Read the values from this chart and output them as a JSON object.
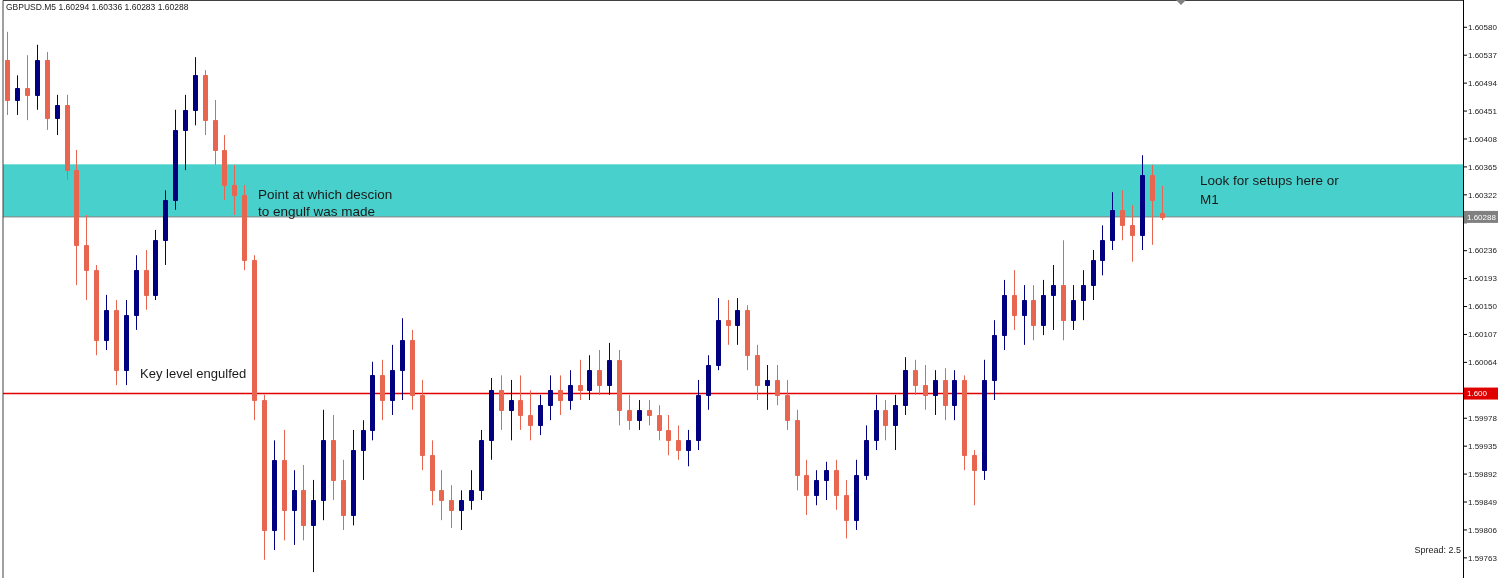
{
  "chart_data": {
    "type": "candlestick",
    "title": "GBPUSD.M5 1.60294 1.60336 1.60283 1.60288",
    "categories": [
      null,
      null,
      null,
      null,
      null,
      null,
      null,
      null,
      null,
      null,
      null,
      null,
      null,
      null,
      null,
      null,
      null,
      null,
      null,
      null,
      null,
      null,
      null,
      null,
      null,
      null,
      null,
      null,
      null,
      null,
      null,
      null,
      null,
      null,
      null,
      null,
      null,
      null,
      null,
      null,
      null,
      null,
      null,
      null,
      null,
      null,
      null,
      null,
      null,
      null,
      null,
      null,
      null,
      null,
      null,
      null,
      null,
      null,
      null,
      null,
      null,
      null,
      null,
      null,
      null,
      null,
      null,
      null,
      null,
      null,
      null,
      null,
      null,
      null,
      null,
      null,
      null,
      null,
      null,
      null,
      null,
      null,
      null,
      null,
      null,
      null,
      null,
      null,
      null,
      null,
      null,
      null,
      null,
      null,
      null,
      null,
      null,
      null,
      null,
      null,
      null,
      null,
      null,
      null,
      null,
      null,
      null,
      null,
      null,
      null,
      null,
      null,
      null,
      null,
      null,
      null,
      null,
      null,
      null,
      null,
      null,
      null,
      null,
      null,
      null,
      null,
      null,
      null,
      null,
      null,
      null,
      null,
      null,
      null,
      null,
      null,
      null,
      null,
      null,
      null,
      null,
      null,
      null,
      null,
      null,
      null,
      null,
      null
    ],
    "ohlc": [
      [
        1.6053,
        1.60573,
        1.60445,
        1.60468
      ],
      [
        1.60468,
        1.60506,
        1.60445,
        1.60486
      ],
      [
        1.60486,
        1.60537,
        1.60437,
        1.60476
      ],
      [
        1.60476,
        1.60553,
        1.60453,
        1.6053
      ],
      [
        1.6053,
        1.60542,
        1.60422,
        1.6044
      ],
      [
        1.6044,
        1.60476,
        1.60414,
        1.6046
      ],
      [
        1.6046,
        1.60476,
        1.60345,
        1.6036
      ],
      [
        1.6036,
        1.60391,
        1.60183,
        1.60245
      ],
      [
        1.60245,
        1.60291,
        1.6016,
        1.60206
      ],
      [
        1.60206,
        1.60214,
        1.60075,
        1.60098
      ],
      [
        1.60098,
        1.60168,
        1.60083,
        1.60145
      ],
      [
        1.60145,
        1.6016,
        1.60029,
        1.60052
      ],
      [
        1.60052,
        1.6016,
        1.60029,
        1.60137
      ],
      [
        1.60137,
        1.60229,
        1.60114,
        1.60206
      ],
      [
        1.60206,
        1.60237,
        1.60145,
        1.60168
      ],
      [
        1.60168,
        1.60268,
        1.6016,
        1.60252
      ],
      [
        1.60252,
        1.60329,
        1.60214,
        1.60314
      ],
      [
        1.60314,
        1.60453,
        1.60299,
        1.60422
      ],
      [
        1.60422,
        1.60476,
        1.6036,
        1.60453
      ],
      [
        1.60453,
        1.60534,
        1.60429,
        1.60506
      ],
      [
        1.60506,
        1.60514,
        1.60414,
        1.60437
      ],
      [
        1.60437,
        1.60468,
        1.60368,
        1.60391
      ],
      [
        1.60391,
        1.60414,
        1.60314,
        1.60337
      ],
      [
        1.60337,
        1.60368,
        1.60291,
        1.60322
      ],
      [
        1.60322,
        1.60337,
        1.60206,
        1.60222
      ],
      [
        1.60222,
        1.60229,
        1.59975,
        1.60006
      ],
      [
        1.60006,
        1.60014,
        1.5976,
        1.59806
      ],
      [
        1.59806,
        1.59944,
        1.59775,
        1.59914
      ],
      [
        1.59914,
        1.5996,
        1.5979,
        1.59837
      ],
      [
        1.59837,
        1.59898,
        1.59783,
        1.59867
      ],
      [
        1.59867,
        1.59906,
        1.5979,
        1.59813
      ],
      [
        1.59813,
        1.59883,
        1.59741,
        1.59852
      ],
      [
        1.59852,
        1.59991,
        1.59821,
        1.59944
      ],
      [
        1.59944,
        1.59983,
        1.59852,
        1.59883
      ],
      [
        1.59883,
        1.59914,
        1.59806,
        1.59829
      ],
      [
        1.59829,
        1.5996,
        1.59813,
        1.59929
      ],
      [
        1.59929,
        1.59975,
        1.59883,
        1.5996
      ],
      [
        1.5996,
        1.60065,
        1.59944,
        1.60044
      ],
      [
        1.60044,
        1.60068,
        1.59975,
        1.60006
      ],
      [
        1.60006,
        1.60091,
        1.59983,
        1.60052
      ],
      [
        1.60052,
        1.60132,
        1.60006,
        1.60098
      ],
      [
        1.60098,
        1.60114,
        1.59991,
        1.60014
      ],
      [
        1.60014,
        1.60037,
        1.59898,
        1.59921
      ],
      [
        1.59921,
        1.59944,
        1.59844,
        1.59867
      ],
      [
        1.59867,
        1.59898,
        1.59821,
        1.59852
      ],
      [
        1.59852,
        1.59875,
        1.59809,
        1.59837
      ],
      [
        1.59837,
        1.59867,
        1.59806,
        1.59852
      ],
      [
        1.59852,
        1.59898,
        1.59837,
        1.59867
      ],
      [
        1.59867,
        1.5996,
        1.59852,
        1.59944
      ],
      [
        1.59944,
        1.6004,
        1.59914,
        1.60021
      ],
      [
        1.60021,
        1.60044,
        1.5996,
        1.59991
      ],
      [
        1.59991,
        1.60037,
        1.59944,
        1.60006
      ],
      [
        1.60006,
        1.60044,
        1.5996,
        1.59983
      ],
      [
        1.59983,
        1.60021,
        1.59944,
        1.59967
      ],
      [
        1.59967,
        1.60014,
        1.59952,
        1.59998
      ],
      [
        1.59998,
        1.60044,
        1.59975,
        1.60021
      ],
      [
        1.60021,
        1.60044,
        1.59983,
        1.60006
      ],
      [
        1.60006,
        1.60052,
        1.59991,
        1.60029
      ],
      [
        1.60029,
        1.60068,
        1.60006,
        1.60021
      ],
      [
        1.60021,
        1.60075,
        1.60006,
        1.60052
      ],
      [
        1.60052,
        1.60083,
        1.60014,
        1.60029
      ],
      [
        1.60029,
        1.60094,
        1.60014,
        1.60068
      ],
      [
        1.60068,
        1.60083,
        1.59967,
        1.59991
      ],
      [
        1.59991,
        1.60014,
        1.5996,
        1.59975
      ],
      [
        1.59975,
        1.60006,
        1.5996,
        1.59991
      ],
      [
        1.59991,
        1.60006,
        1.59967,
        1.59983
      ],
      [
        1.59983,
        1.59998,
        1.59944,
        1.5996
      ],
      [
        1.5996,
        1.59983,
        1.59921,
        1.59944
      ],
      [
        1.59944,
        1.59967,
        1.59914,
        1.59929
      ],
      [
        1.59929,
        1.5996,
        1.59904,
        1.59944
      ],
      [
        1.59944,
        1.60037,
        1.59929,
        1.60014
      ],
      [
        1.60014,
        1.60075,
        1.59991,
        1.6006
      ],
      [
        1.6006,
        1.60163,
        1.60052,
        1.60129
      ],
      [
        1.60129,
        1.6016,
        1.60091,
        1.60121
      ],
      [
        1.60121,
        1.60163,
        1.60091,
        1.60145
      ],
      [
        1.60145,
        1.60152,
        1.60052,
        1.60075
      ],
      [
        1.60075,
        1.60091,
        1.60006,
        1.60029
      ],
      [
        1.60029,
        1.6006,
        1.59991,
        1.60037
      ],
      [
        1.60037,
        1.6006,
        1.59998,
        1.60014
      ],
      [
        1.60014,
        1.60037,
        1.5996,
        1.59975
      ],
      [
        1.59975,
        1.59991,
        1.59867,
        1.5989
      ],
      [
        1.5989,
        1.59914,
        1.59829,
        1.5986
      ],
      [
        1.5986,
        1.59898,
        1.59844,
        1.59883
      ],
      [
        1.59883,
        1.59911,
        1.59852,
        1.59898
      ],
      [
        1.59898,
        1.59914,
        1.59837,
        1.5986
      ],
      [
        1.5986,
        1.59883,
        1.59793,
        1.59821
      ],
      [
        1.59821,
        1.59914,
        1.59806,
        1.5989
      ],
      [
        1.5989,
        1.59967,
        1.59883,
        1.59944
      ],
      [
        1.59944,
        1.60014,
        1.59929,
        1.59991
      ],
      [
        1.59991,
        1.60006,
        1.59944,
        1.59967
      ],
      [
        1.59967,
        1.60014,
        1.59929,
        1.59998
      ],
      [
        1.59998,
        1.60072,
        1.59983,
        1.60052
      ],
      [
        1.60052,
        1.60068,
        1.60014,
        1.60029
      ],
      [
        1.60029,
        1.6006,
        1.59991,
        1.60014
      ],
      [
        1.60014,
        1.60052,
        1.59983,
        1.60037
      ],
      [
        1.60037,
        1.60055,
        1.59975,
        1.59998
      ],
      [
        1.59998,
        1.60052,
        1.59975,
        1.60037
      ],
      [
        1.60037,
        1.60044,
        1.59898,
        1.59921
      ],
      [
        1.59921,
        1.59929,
        1.59844,
        1.59898
      ],
      [
        1.59898,
        1.60068,
        1.59883,
        1.60037
      ],
      [
        1.60037,
        1.60129,
        1.60006,
        1.60106
      ],
      [
        1.60106,
        1.60191,
        1.60083,
        1.60168
      ],
      [
        1.60168,
        1.60206,
        1.60114,
        1.60137
      ],
      [
        1.60137,
        1.60183,
        1.60091,
        1.6016
      ],
      [
        1.6016,
        1.60183,
        1.60098,
        1.60121
      ],
      [
        1.60121,
        1.60191,
        1.60106,
        1.60168
      ],
      [
        1.60168,
        1.60214,
        1.60114,
        1.60183
      ],
      [
        1.60183,
        1.60252,
        1.60098,
        1.60129
      ],
      [
        1.60129,
        1.60183,
        1.60114,
        1.6016
      ],
      [
        1.6016,
        1.60206,
        1.60129,
        1.60183
      ],
      [
        1.60183,
        1.60237,
        1.6016,
        1.60222
      ],
      [
        1.60222,
        1.60275,
        1.60198,
        1.60252
      ],
      [
        1.60252,
        1.60326,
        1.60237,
        1.60299
      ],
      [
        1.60299,
        1.60329,
        1.60252,
        1.60275
      ],
      [
        1.60275,
        1.60306,
        1.60219,
        1.6026
      ],
      [
        1.6026,
        1.60383,
        1.60237,
        1.60352
      ],
      [
        1.60352,
        1.60368,
        1.60245,
        1.60314
      ],
      [
        1.60294,
        1.60336,
        1.60283,
        1.60288
      ],
      null,
      null,
      null,
      null,
      null,
      null,
      null,
      null,
      null,
      null,
      null,
      null,
      null,
      null,
      null,
      null,
      null,
      null,
      null,
      null,
      null,
      null,
      null,
      null,
      null,
      null,
      null,
      null,
      null,
      null
    ],
    "colors": [
      "#e8664f",
      "#000080",
      "#e8664f",
      "#000080",
      "#e8664f",
      "#000080",
      "#e8664f",
      "#e8664f",
      "#e8664f",
      "#e8664f",
      "#000080",
      "#e8664f",
      "#000080",
      "#000080",
      "#e8664f",
      "#000080",
      "#000080",
      "#000080",
      "#000080",
      "#000080",
      "#e8664f",
      "#e8664f",
      "#e8664f",
      "#e8664f",
      "#e8664f",
      "#e8664f",
      "#e8664f",
      "#000080",
      "#e8664f",
      "#000080",
      "#e8664f",
      "#000080",
      "#000080",
      "#e8664f",
      "#e8664f",
      "#000080",
      "#000080",
      "#000080",
      "#e8664f",
      "#000080",
      "#000080",
      "#e8664f",
      "#e8664f",
      "#e8664f",
      "#e8664f",
      "#e8664f",
      "#000080",
      "#000080",
      "#000080",
      "#000080",
      "#e8664f",
      "#000080",
      "#e8664f",
      "#e8664f",
      "#000080",
      "#000080",
      "#e8664f",
      "#000080",
      "#e8664f",
      "#000080",
      "#e8664f",
      "#000080",
      "#e8664f",
      "#e8664f",
      "#000080",
      "#e8664f",
      "#e8664f",
      "#e8664f",
      "#e8664f",
      "#000080",
      "#000080",
      "#000080",
      "#000080",
      "#e8664f",
      "#000080",
      "#e8664f",
      "#e8664f",
      "#000080",
      "#e8664f",
      "#e8664f",
      "#e8664f",
      "#e8664f",
      "#000080",
      "#000080",
      "#e8664f",
      "#e8664f",
      "#000080",
      "#000080",
      "#000080",
      "#e8664f",
      "#000080",
      "#000080",
      "#e8664f",
      "#e8664f",
      "#000080",
      "#e8664f",
      "#000080",
      "#e8664f",
      "#e8664f",
      "#000080",
      "#000080",
      "#000080",
      "#e8664f",
      "#000080",
      "#e8664f",
      "#000080",
      "#000080",
      "#e8664f",
      "#000080",
      "#000080",
      "#000080",
      "#000080",
      "#000080",
      "#e8664f",
      "#e8664f",
      "#000080",
      "#e8664f",
      "#e8664f",
      null,
      null,
      null,
      null,
      null,
      null,
      null,
      null,
      null,
      null,
      null,
      null,
      null,
      null,
      null,
      null,
      null,
      null,
      null,
      null,
      null,
      null,
      null,
      null,
      null,
      null,
      null,
      null,
      null,
      null
    ],
    "ylim": [
      1.59732,
      1.60622
    ],
    "yticks": [
      {
        "value": 1.6058,
        "label": "1.60580"
      },
      {
        "value": 1.60537,
        "label": "1.60537"
      },
      {
        "value": 1.60494,
        "label": "1.60494"
      },
      {
        "value": 1.60451,
        "label": "1.60451"
      },
      {
        "value": 1.60408,
        "label": "1.60408"
      },
      {
        "value": 1.60365,
        "label": "1.60365"
      },
      {
        "value": 1.60322,
        "label": "1.60322"
      },
      {
        "value": 1.60279,
        "label": null
      },
      {
        "value": 1.60236,
        "label": "1.60236"
      },
      {
        "value": 1.60193,
        "label": "1.60193"
      },
      {
        "value": 1.6015,
        "label": "1.60150"
      },
      {
        "value": 1.60107,
        "label": "1.60107"
      },
      {
        "value": 1.60064,
        "label": "1.60064"
      },
      {
        "value": 1.60021,
        "label": null
      },
      {
        "value": 1.59978,
        "label": "1.59978"
      },
      {
        "value": 1.59935,
        "label": "1.59935"
      },
      {
        "value": 1.59892,
        "label": "1.59892"
      },
      {
        "value": 1.59849,
        "label": "1.59849"
      },
      {
        "value": 1.59806,
        "label": "1.59806"
      },
      {
        "value": 1.59763,
        "label": "1.59763"
      }
    ],
    "tick_labels": "y",
    "bands": [
      {
        "axis": "y",
        "from": 1.60288,
        "to": 1.60369,
        "color": "#48d1cc"
      }
    ],
    "ref_lines": [
      {
        "axis": "y",
        "value": 1.60288,
        "label": "1.60288",
        "color": "#808080"
      },
      {
        "axis": "y",
        "value": 1.60016,
        "label": "1.600",
        "color": "#e00000"
      }
    ],
    "annotations": [
      "Point at which descion\nto engulf was made",
      "Key level engulfed",
      "Look for setups here or\nM1",
      "Spread: 2.5"
    ]
  }
}
